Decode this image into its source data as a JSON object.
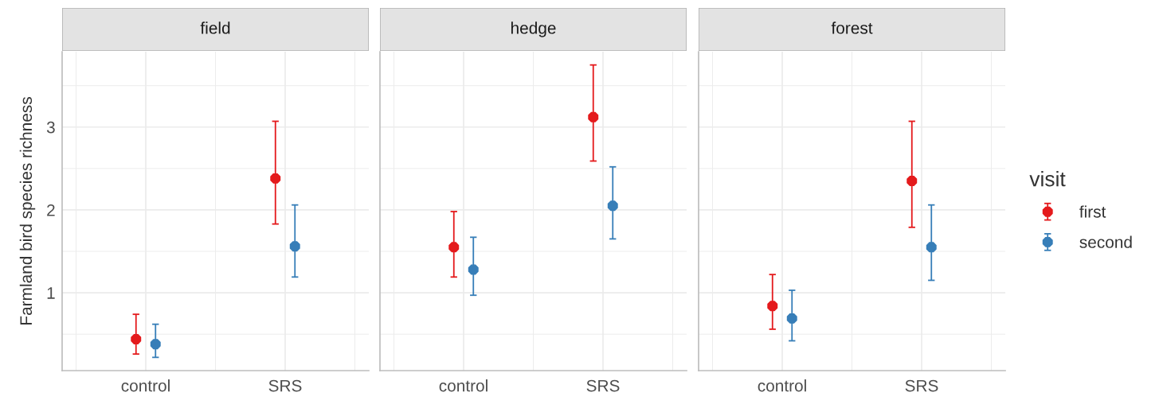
{
  "chart_data": [
    {
      "type": "scatter",
      "title": "field",
      "ylabel": "Farmland bird species richness",
      "categories": [
        "control",
        "SRS"
      ],
      "ylim": [
        0.06,
        3.91
      ],
      "yticks": [
        1,
        2,
        3
      ],
      "grid": true,
      "marker": "circle",
      "legend": false,
      "series": [
        {
          "color": "#e41a1c",
          "values": [
            0.44,
            2.38
          ],
          "errors": [
            [
              0.26,
              0.74
            ],
            [
              1.83,
              3.07
            ]
          ]
        },
        {
          "color": "#377eb8",
          "values": [
            0.38,
            1.56
          ],
          "errors": [
            [
              0.22,
              0.62
            ],
            [
              1.19,
              2.06
            ]
          ]
        }
      ]
    },
    {
      "type": "scatter",
      "title": "hedge",
      "categories": [
        "control",
        "SRS"
      ],
      "ylim": [
        0.06,
        3.91
      ],
      "yticks": [
        1,
        2,
        3
      ],
      "grid": true,
      "marker": "circle",
      "legend": false,
      "tick_labels": "x",
      "series": [
        {
          "color": "#e41a1c",
          "values": [
            1.55,
            3.12
          ],
          "errors": [
            [
              1.19,
              1.98
            ],
            [
              2.59,
              3.75
            ]
          ]
        },
        {
          "color": "#377eb8",
          "values": [
            1.28,
            2.05
          ],
          "errors": [
            [
              0.97,
              1.67
            ],
            [
              1.65,
              2.52
            ]
          ]
        }
      ]
    },
    {
      "type": "scatter",
      "title": "forest",
      "legend_title": "visit",
      "categories": [
        "control",
        "SRS"
      ],
      "ylim": [
        0.06,
        3.91
      ],
      "yticks": [
        1,
        2,
        3
      ],
      "grid": true,
      "marker": "circle",
      "legend": "right",
      "tick_labels": "x",
      "series": [
        {
          "name": "first",
          "color": "#e41a1c",
          "values": [
            0.84,
            2.35
          ],
          "errors": [
            [
              0.56,
              1.22
            ],
            [
              1.79,
              3.07
            ]
          ]
        },
        {
          "name": "second",
          "color": "#377eb8",
          "values": [
            0.69,
            1.55
          ],
          "errors": [
            [
              0.42,
              1.03
            ],
            [
              1.15,
              2.06
            ]
          ]
        }
      ]
    }
  ]
}
